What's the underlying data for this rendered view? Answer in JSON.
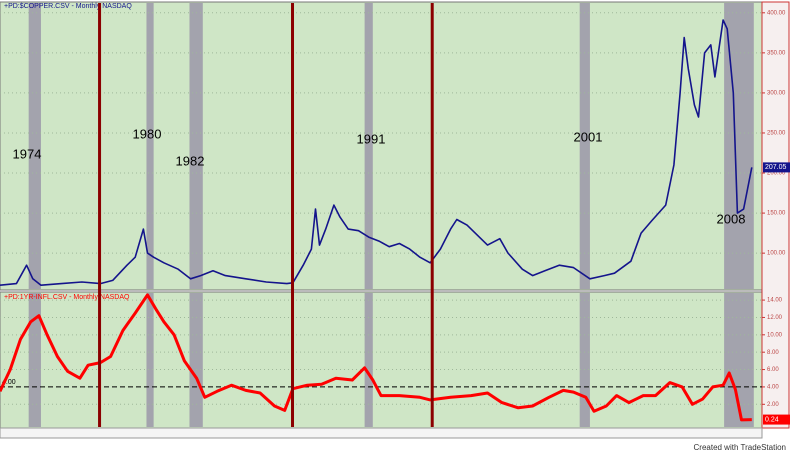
{
  "chart_data": [
    {
      "type": "line",
      "title": "+PD:$COPPER.CSV - Monthly  NASDAQ",
      "color": "#14148c",
      "xlim": [
        1973.0,
        2010.2
      ],
      "ylim": [
        54,
        406
      ],
      "yticks": [
        {
          "value": 100,
          "label": "100.00"
        },
        {
          "value": 150,
          "label": "150.00"
        },
        {
          "value": 200,
          "label": "200.00"
        },
        {
          "value": 250,
          "label": "250.00"
        },
        {
          "value": 300,
          "label": "300.00"
        },
        {
          "value": 350,
          "label": "350.00"
        },
        {
          "value": 400,
          "label": "400.00"
        }
      ],
      "grid": true,
      "x": [
        1973.0,
        1973.8,
        1974.3,
        1974.6,
        1975.0,
        1976.0,
        1977.0,
        1977.9,
        1978.5,
        1979.2,
        1979.6,
        1980.0,
        1980.2,
        1980.5,
        1981.0,
        1981.7,
        1982.3,
        1982.8,
        1983.4,
        1984.0,
        1985.0,
        1986.0,
        1987.0,
        1987.3,
        1987.8,
        1988.2,
        1988.4,
        1988.6,
        1988.9,
        1989.3,
        1989.6,
        1990.0,
        1990.5,
        1991.0,
        1991.5,
        1992.0,
        1992.5,
        1993.0,
        1993.5,
        1994.0,
        1994.5,
        1995.0,
        1995.3,
        1995.8,
        1996.4,
        1996.8,
        1997.4,
        1997.8,
        1998.5,
        1999.0,
        1999.6,
        2000.3,
        2001.0,
        2001.8,
        2002.5,
        2003.0,
        2003.8,
        2004.3,
        2004.8,
        2005.5,
        2005.9,
        2006.2,
        2006.4,
        2006.6,
        2006.9,
        2007.1,
        2007.4,
        2007.7,
        2007.9,
        2008.3,
        2008.5,
        2008.8,
        2009.0,
        2009.3,
        2009.7
      ],
      "values": [
        60,
        62,
        85,
        68,
        60,
        62,
        64,
        62,
        66,
        85,
        95,
        130,
        100,
        95,
        88,
        80,
        68,
        72,
        78,
        72,
        68,
        64,
        62,
        63,
        85,
        105,
        155,
        110,
        130,
        160,
        145,
        130,
        128,
        120,
        115,
        108,
        112,
        105,
        95,
        88,
        105,
        130,
        142,
        135,
        120,
        110,
        118,
        100,
        80,
        72,
        78,
        85,
        82,
        68,
        72,
        75,
        90,
        125,
        140,
        160,
        210,
        300,
        369,
        330,
        285,
        270,
        350,
        360,
        320,
        391,
        380,
        300,
        150,
        155,
        207.05
      ],
      "recessions": [
        [
          1974.4,
          1975.0
        ],
        [
          1980.15,
          1980.5
        ],
        [
          1982.25,
          1982.9
        ],
        [
          1990.8,
          1991.2
        ],
        [
          2001.3,
          2001.8
        ],
        [
          2008.35,
          2009.8
        ]
      ],
      "event_lines": [
        1977.86,
        1987.28,
        1994.1
      ],
      "annotations": [
        "1974",
        "1980",
        "1982",
        "1991",
        "2001",
        "2008"
      ]
    },
    {
      "type": "line",
      "title": "+PD:1YR-INFL.CSV - Monthly  NASDAQ",
      "color": "#ff0000",
      "xlim": [
        1973.0,
        2010.2
      ],
      "ylim": [
        -0.5,
        14.7
      ],
      "yticks": [
        {
          "value": 2,
          "label": "2.00"
        },
        {
          "value": 4,
          "label": "4.00"
        },
        {
          "value": 6,
          "label": "6.00"
        },
        {
          "value": 8,
          "label": "8.00"
        },
        {
          "value": 10,
          "label": "10.00"
        },
        {
          "value": 12,
          "label": "12.00"
        },
        {
          "value": 14,
          "label": "14.00"
        }
      ],
      "grid": true,
      "reference_line": {
        "value": 4,
        "label": "4.00"
      },
      "x": [
        1973.0,
        1973.5,
        1974.0,
        1974.5,
        1974.9,
        1975.3,
        1975.8,
        1976.3,
        1976.9,
        1977.3,
        1977.9,
        1978.4,
        1979.0,
        1979.6,
        1980.2,
        1980.6,
        1981.0,
        1981.5,
        1982.0,
        1982.6,
        1983.0,
        1983.6,
        1984.3,
        1985.0,
        1985.7,
        1986.4,
        1986.9,
        1987.3,
        1988.0,
        1988.7,
        1989.4,
        1990.2,
        1990.8,
        1991.2,
        1991.6,
        1992.5,
        1993.5,
        1994.0,
        1995.0,
        1996.0,
        1996.8,
        1997.5,
        1998.3,
        1999.0,
        1999.8,
        2000.5,
        2001.0,
        2001.6,
        2002.0,
        2002.6,
        2003.1,
        2003.7,
        2004.4,
        2005.0,
        2005.7,
        2006.3,
        2006.8,
        2007.3,
        2007.8,
        2008.3,
        2008.6,
        2008.9,
        2009.2,
        2009.7
      ],
      "values": [
        3.5,
        6,
        9.5,
        11.5,
        12.2,
        10,
        7.5,
        5.8,
        5,
        6.5,
        6.8,
        7.5,
        10.5,
        12.5,
        14.6,
        13,
        11.5,
        10,
        7,
        5,
        2.8,
        3.5,
        4.2,
        3.6,
        3.3,
        1.8,
        1.3,
        3.8,
        4.2,
        4.3,
        5,
        4.8,
        6.2,
        4.8,
        3,
        3,
        2.8,
        2.5,
        2.8,
        3.0,
        3.3,
        2.2,
        1.6,
        1.8,
        2.8,
        3.6,
        3.4,
        2.8,
        1.2,
        1.8,
        3.0,
        2.2,
        3.0,
        3.0,
        4.5,
        4.0,
        2.0,
        2.6,
        4.0,
        4.2,
        5.6,
        3.7,
        0.2,
        0.24
      ]
    }
  ],
  "footer": "Created with TradeStation"
}
